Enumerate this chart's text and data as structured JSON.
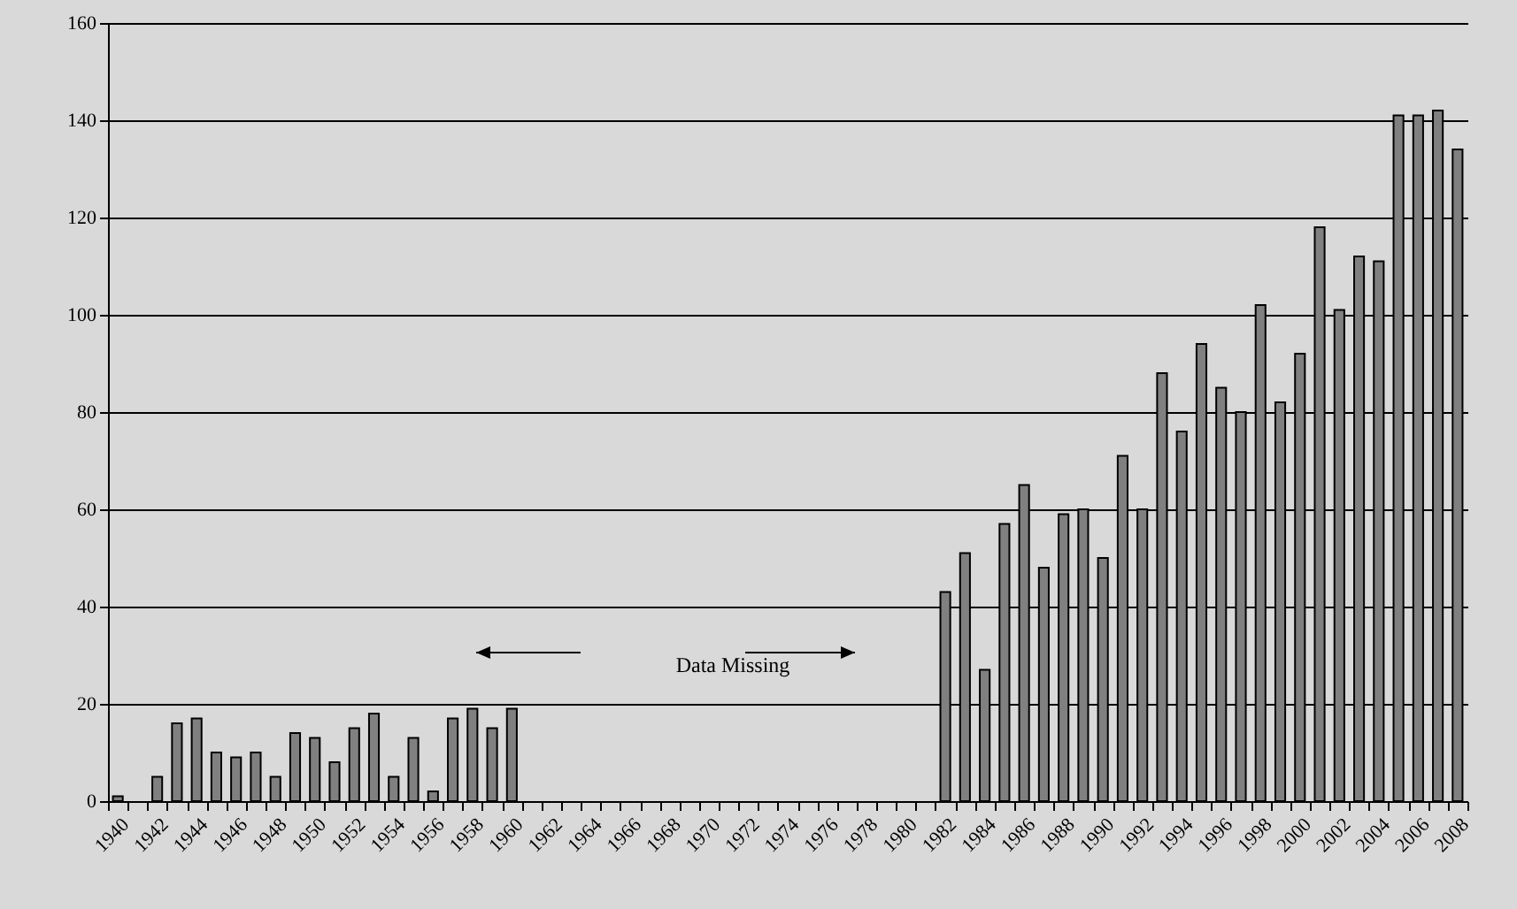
{
  "chart_data": {
    "type": "bar",
    "categories": [
      "1940",
      null,
      "1942",
      null,
      "1944",
      null,
      "1946",
      null,
      "1948",
      null,
      "1950",
      null,
      "1952",
      null,
      "1954",
      null,
      "1956",
      null,
      "1958",
      null,
      "1960",
      null,
      "1962",
      null,
      "1964",
      null,
      "1966",
      null,
      "1968",
      null,
      "1970",
      null,
      "1972",
      null,
      "1974",
      null,
      "1976",
      null,
      "1978",
      null,
      "1980",
      null,
      "1982",
      null,
      "1984",
      null,
      "1986",
      null,
      "1988",
      null,
      "1990",
      null,
      "1992",
      null,
      "1994",
      null,
      "1996",
      null,
      "1998",
      null,
      "2000",
      null,
      "2002",
      null,
      "2004",
      null,
      "2006",
      null,
      "2008"
    ],
    "values": [
      1,
      null,
      5,
      16,
      17,
      10,
      9,
      10,
      5,
      14,
      13,
      8,
      15,
      18,
      5,
      13,
      2,
      17,
      19,
      15,
      19,
      null,
      null,
      null,
      null,
      null,
      null,
      null,
      null,
      null,
      null,
      null,
      null,
      null,
      null,
      null,
      null,
      null,
      null,
      null,
      null,
      null,
      43,
      51,
      27,
      57,
      65,
      48,
      59,
      60,
      50,
      71,
      60,
      88,
      76,
      94,
      85,
      80,
      102,
      82,
      92,
      118,
      101,
      112,
      111,
      141,
      141,
      142,
      134
    ],
    "color": "#808080",
    "ylim": [
      0,
      160
    ],
    "yticks": [
      0,
      20,
      40,
      60,
      80,
      100,
      120,
      140,
      160
    ],
    "grid": "y",
    "annotations": [
      "Data Missing"
    ]
  }
}
